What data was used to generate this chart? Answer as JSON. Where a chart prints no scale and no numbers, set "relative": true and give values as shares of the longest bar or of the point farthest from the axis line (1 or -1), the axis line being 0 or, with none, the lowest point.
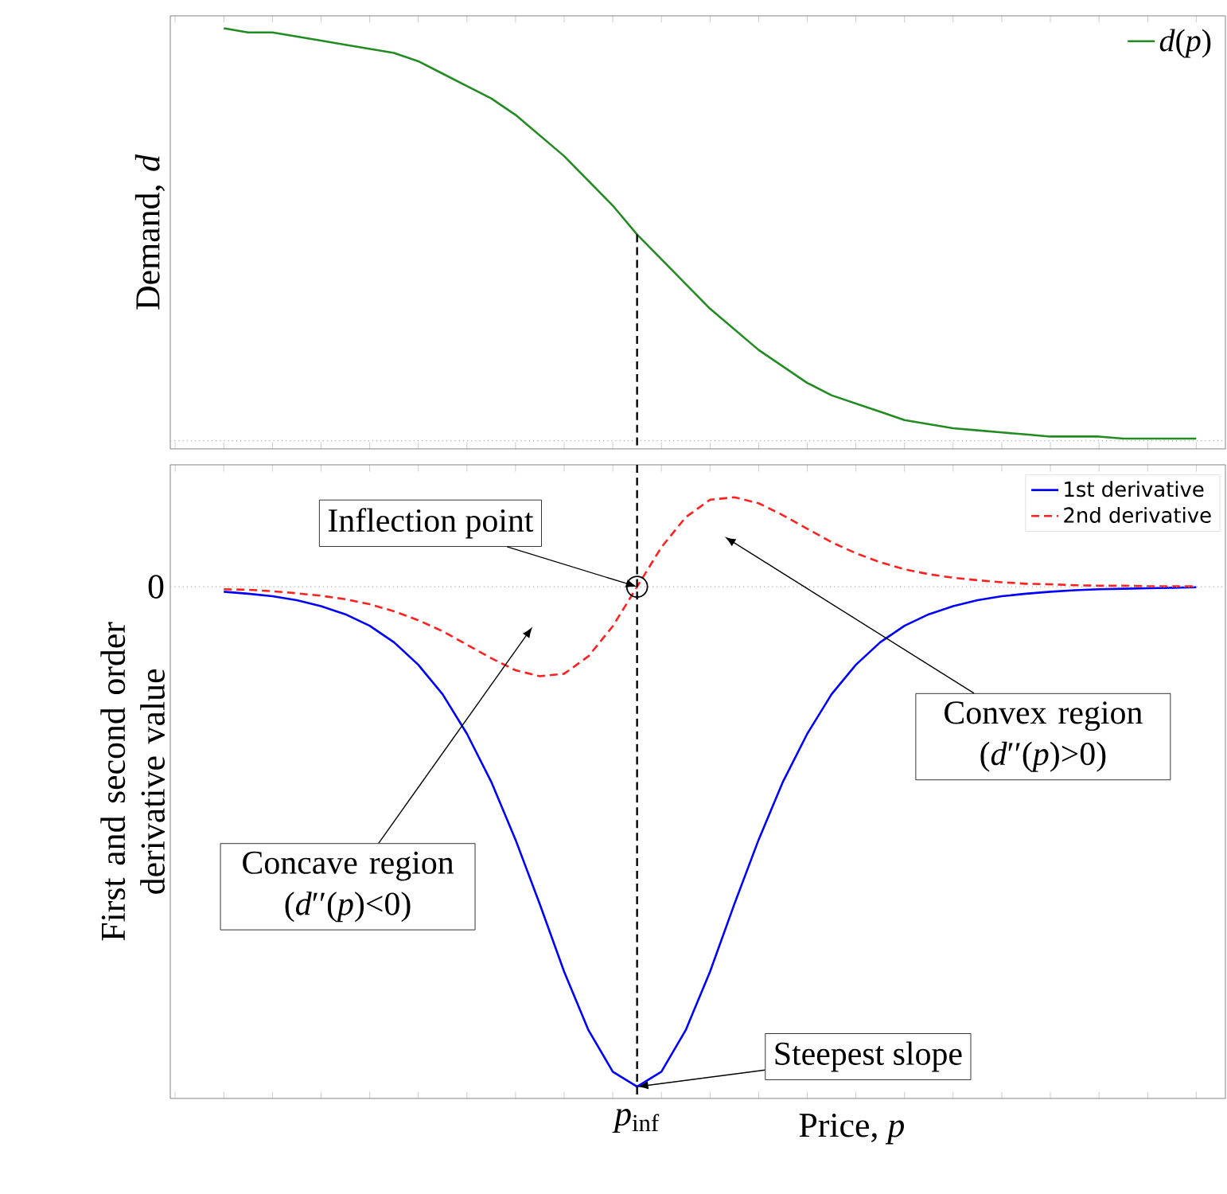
{
  "chart_data": [
    {
      "type": "line",
      "relative": true,
      "ylabel": "Demand, *d*",
      "legend": "top right",
      "categories": [
        null,
        null,
        null,
        null,
        null,
        null,
        null,
        null,
        null,
        null,
        null,
        null,
        null,
        null,
        null,
        null,
        null,
        null,
        null,
        null,
        null,
        null,
        null,
        null,
        null,
        null,
        null,
        null,
        null,
        null,
        null,
        null,
        null,
        null,
        null,
        null,
        null,
        null,
        null,
        null,
        null
      ],
      "series": [
        {
          "name": "*d*(*p*)",
          "color": "#228b22",
          "line_style": "solid",
          "values": [
            1.0,
            0.99,
            0.99,
            0.98,
            0.97,
            0.96,
            0.95,
            0.94,
            0.92,
            0.89,
            0.86,
            0.83,
            0.79,
            0.74,
            0.69,
            0.63,
            0.57,
            0.5,
            0.44,
            0.38,
            0.32,
            0.27,
            0.22,
            0.18,
            0.14,
            0.11,
            0.09,
            0.07,
            0.05,
            0.04,
            0.03,
            0.025,
            0.02,
            0.015,
            0.01,
            0.01,
            0.01,
            0.005,
            0.005,
            0.005,
            0.005
          ]
        }
      ],
      "ref_lines": [
        {
          "axis": "y",
          "value": 0,
          "color": "#aaaaaa",
          "line_style": "dotted"
        },
        {
          "axis": "x",
          "color": "#000000",
          "line_style": "dashed"
        }
      ]
    },
    {
      "type": "line",
      "relative": true,
      "ylabel": "First and second order derivative value",
      "xlabel": "Price, *p*",
      "legend": "top right",
      "categories": [
        null,
        null,
        null,
        null,
        null,
        null,
        null,
        null,
        null,
        null,
        null,
        null,
        null,
        null,
        null,
        null,
        null,
        null,
        null,
        null,
        null,
        null,
        null,
        null,
        null,
        null,
        null,
        null,
        null,
        null,
        null,
        null,
        null,
        null,
        null,
        null,
        null,
        null,
        null,
        null,
        null
      ],
      "series": [
        {
          "name": "1st derivative",
          "color": "#0000ff",
          "line_style": "solid",
          "values": [
            -0.01,
            -0.014,
            -0.019,
            -0.027,
            -0.039,
            -0.055,
            -0.078,
            -0.111,
            -0.156,
            -0.215,
            -0.294,
            -0.39,
            -0.506,
            -0.635,
            -0.77,
            -0.887,
            -0.97,
            -1.0,
            -0.97,
            -0.887,
            -0.77,
            -0.635,
            -0.506,
            -0.39,
            -0.294,
            -0.215,
            -0.156,
            -0.111,
            -0.078,
            -0.055,
            -0.039,
            -0.027,
            -0.019,
            -0.014,
            -0.01,
            -0.007,
            -0.005,
            -0.004,
            -0.003,
            -0.002,
            -0.001
          ]
        },
        {
          "name": "2nd derivative",
          "color": "#ff2020",
          "line_style": "dashed",
          "values": [
            -0.005,
            -0.006,
            -0.009,
            -0.013,
            -0.018,
            -0.025,
            -0.035,
            -0.049,
            -0.067,
            -0.089,
            -0.116,
            -0.143,
            -0.167,
            -0.179,
            -0.174,
            -0.139,
            -0.079,
            0.0,
            0.079,
            0.139,
            0.174,
            0.179,
            0.167,
            0.143,
            0.116,
            0.089,
            0.067,
            0.049,
            0.035,
            0.025,
            0.018,
            0.013,
            0.009,
            0.006,
            0.005,
            0.003,
            0.002,
            0.002,
            0.001,
            0.001,
            0.001
          ]
        }
      ],
      "ref_lines": [
        {
          "axis": "y",
          "value": 0,
          "label": "0",
          "color": "#aaaaaa",
          "line_style": "dotted"
        },
        {
          "axis": "x",
          "label": "*p*$_{inf}$",
          "color": "#000000",
          "line_style": "dashed"
        }
      ],
      "annotations": [
        {
          "text": "Inflection point",
          "y": 0
        },
        "Steepest slope",
        "Concave region (*d*′′(*p*)<0)",
        "Convex region (*d*′′(*p*)>0)"
      ]
    }
  ]
}
